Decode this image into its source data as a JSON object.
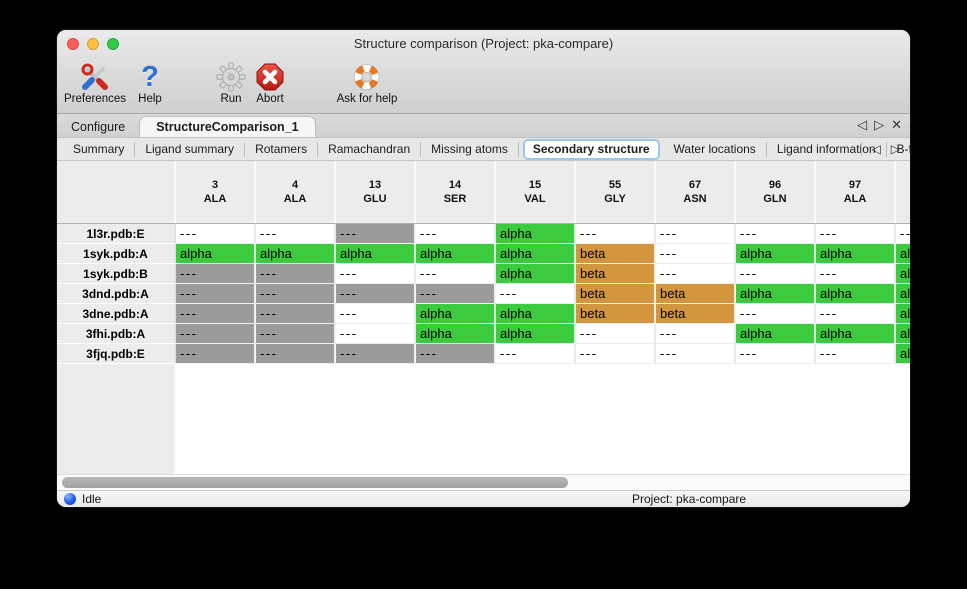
{
  "window": {
    "title": "Structure comparison (Project: pka-compare)"
  },
  "toolbar": {
    "items": [
      {
        "label": "Preferences",
        "icon": "tools-icon"
      },
      {
        "label": "Help",
        "icon": "question-mark-icon",
        "glyph": "?"
      },
      {
        "label": "Run",
        "icon": "gear-icon"
      },
      {
        "label": "Abort",
        "icon": "stop-x-icon"
      },
      {
        "label": "Ask for help",
        "icon": "lifebuoy-icon"
      }
    ]
  },
  "tabs": {
    "items": [
      {
        "label": "Configure",
        "selected": false
      },
      {
        "label": "StructureComparison_1",
        "selected": true
      }
    ],
    "controls": {
      "prev": "◁",
      "next": "▷",
      "close": "✕"
    }
  },
  "subtabs": {
    "items": [
      "Summary",
      "Ligand summary",
      "Rotamers",
      "Ramachandran",
      "Missing atoms",
      "Secondary structure",
      "Water locations",
      "Ligand information",
      "B-factors"
    ],
    "selected": "Secondary structure",
    "controls": {
      "prev": "◁",
      "next": "▷"
    }
  },
  "colors": {
    "alpha_green": "#3ccb3e",
    "beta_orange": "#d29540",
    "missing_gray": "#9b9b9b",
    "cell_white": "#ffffff",
    "selected_subtab_border": "#9ec7f0"
  },
  "table": {
    "columns": [
      {
        "num": "3",
        "res": "ALA"
      },
      {
        "num": "4",
        "res": "ALA"
      },
      {
        "num": "13",
        "res": "GLU"
      },
      {
        "num": "14",
        "res": "SER"
      },
      {
        "num": "15",
        "res": "VAL"
      },
      {
        "num": "55",
        "res": "GLY"
      },
      {
        "num": "67",
        "res": "ASN"
      },
      {
        "num": "96",
        "res": "GLN"
      },
      {
        "num": "97",
        "res": "ALA"
      },
      {
        "num": "",
        "res": ""
      }
    ],
    "rows": [
      {
        "name": "1l3r.pdb:E",
        "cells": [
          {
            "text": "---",
            "color": "white"
          },
          {
            "text": "---",
            "color": "white"
          },
          {
            "text": "---",
            "color": "gray"
          },
          {
            "text": "---",
            "color": "white"
          },
          {
            "text": "alpha",
            "color": "green"
          },
          {
            "text": "---",
            "color": "white"
          },
          {
            "text": "---",
            "color": "white"
          },
          {
            "text": "---",
            "color": "white"
          },
          {
            "text": "---",
            "color": "white"
          },
          {
            "text": "---",
            "color": "white"
          }
        ]
      },
      {
        "name": "1syk.pdb:A",
        "cells": [
          {
            "text": "alpha",
            "color": "green"
          },
          {
            "text": "alpha",
            "color": "green"
          },
          {
            "text": "alpha",
            "color": "green"
          },
          {
            "text": "alpha",
            "color": "green"
          },
          {
            "text": "alpha",
            "color": "green"
          },
          {
            "text": "beta",
            "color": "orange"
          },
          {
            "text": "---",
            "color": "white"
          },
          {
            "text": "alpha",
            "color": "green"
          },
          {
            "text": "alpha",
            "color": "green"
          },
          {
            "text": "alpha",
            "color": "green"
          }
        ]
      },
      {
        "name": "1syk.pdb:B",
        "cells": [
          {
            "text": "---",
            "color": "gray"
          },
          {
            "text": "---",
            "color": "gray"
          },
          {
            "text": "---",
            "color": "white"
          },
          {
            "text": "---",
            "color": "white"
          },
          {
            "text": "alpha",
            "color": "green"
          },
          {
            "text": "beta",
            "color": "orange"
          },
          {
            "text": "---",
            "color": "white"
          },
          {
            "text": "---",
            "color": "white"
          },
          {
            "text": "---",
            "color": "white"
          },
          {
            "text": "alpha",
            "color": "green"
          }
        ]
      },
      {
        "name": "3dnd.pdb:A",
        "cells": [
          {
            "text": "---",
            "color": "gray"
          },
          {
            "text": "---",
            "color": "gray"
          },
          {
            "text": "---",
            "color": "gray"
          },
          {
            "text": "---",
            "color": "gray"
          },
          {
            "text": "---",
            "color": "white"
          },
          {
            "text": "beta",
            "color": "orange"
          },
          {
            "text": "beta",
            "color": "orange"
          },
          {
            "text": "alpha",
            "color": "green"
          },
          {
            "text": "alpha",
            "color": "green"
          },
          {
            "text": "alpha",
            "color": "green"
          }
        ]
      },
      {
        "name": "3dne.pdb:A",
        "cells": [
          {
            "text": "---",
            "color": "gray"
          },
          {
            "text": "---",
            "color": "gray"
          },
          {
            "text": "---",
            "color": "white"
          },
          {
            "text": "alpha",
            "color": "green"
          },
          {
            "text": "alpha",
            "color": "green"
          },
          {
            "text": "beta",
            "color": "orange"
          },
          {
            "text": "beta",
            "color": "orange"
          },
          {
            "text": "---",
            "color": "white"
          },
          {
            "text": "---",
            "color": "white"
          },
          {
            "text": "alpha",
            "color": "green"
          }
        ]
      },
      {
        "name": "3fhi.pdb:A",
        "cells": [
          {
            "text": "---",
            "color": "gray"
          },
          {
            "text": "---",
            "color": "gray"
          },
          {
            "text": "---",
            "color": "white"
          },
          {
            "text": "alpha",
            "color": "green"
          },
          {
            "text": "alpha",
            "color": "green"
          },
          {
            "text": "---",
            "color": "white"
          },
          {
            "text": "---",
            "color": "white"
          },
          {
            "text": "alpha",
            "color": "green"
          },
          {
            "text": "alpha",
            "color": "green"
          },
          {
            "text": "alpha",
            "color": "green"
          }
        ]
      },
      {
        "name": "3fjq.pdb:E",
        "cells": [
          {
            "text": "---",
            "color": "gray"
          },
          {
            "text": "---",
            "color": "gray"
          },
          {
            "text": "---",
            "color": "gray"
          },
          {
            "text": "---",
            "color": "gray"
          },
          {
            "text": "---",
            "color": "white"
          },
          {
            "text": "---",
            "color": "white"
          },
          {
            "text": "---",
            "color": "white"
          },
          {
            "text": "---",
            "color": "white"
          },
          {
            "text": "---",
            "color": "white"
          },
          {
            "text": "alpha",
            "color": "green"
          }
        ]
      }
    ]
  },
  "statusbar": {
    "status": "Idle",
    "project": "Project: pka-compare"
  }
}
